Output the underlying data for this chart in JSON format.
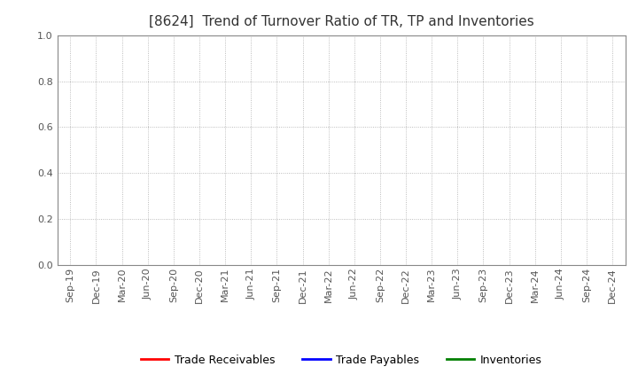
{
  "title": "[8624]  Trend of Turnover Ratio of TR, TP and Inventories",
  "title_fontsize": 11,
  "title_fontweight": "normal",
  "title_color": "#333333",
  "ylim": [
    0.0,
    1.0
  ],
  "yticks": [
    0.0,
    0.2,
    0.4,
    0.6,
    0.8,
    1.0
  ],
  "x_labels": [
    "Sep-19",
    "Dec-19",
    "Mar-20",
    "Jun-20",
    "Sep-20",
    "Dec-20",
    "Mar-21",
    "Jun-21",
    "Sep-21",
    "Dec-21",
    "Mar-22",
    "Jun-22",
    "Sep-22",
    "Dec-22",
    "Mar-23",
    "Jun-23",
    "Sep-23",
    "Dec-23",
    "Mar-24",
    "Jun-24",
    "Sep-24",
    "Dec-24"
  ],
  "legend_entries": [
    {
      "label": "Trade Receivables",
      "color": "#ff0000"
    },
    {
      "label": "Trade Payables",
      "color": "#0000ff"
    },
    {
      "label": "Inventories",
      "color": "#008000"
    }
  ],
  "grid_color": "#aaaaaa",
  "grid_linestyle": ":",
  "background_color": "#ffffff",
  "plot_bg_color": "#ffffff",
  "spine_color": "#888888",
  "tick_label_fontsize": 8,
  "tick_color": "#555555",
  "legend_fontsize": 9
}
